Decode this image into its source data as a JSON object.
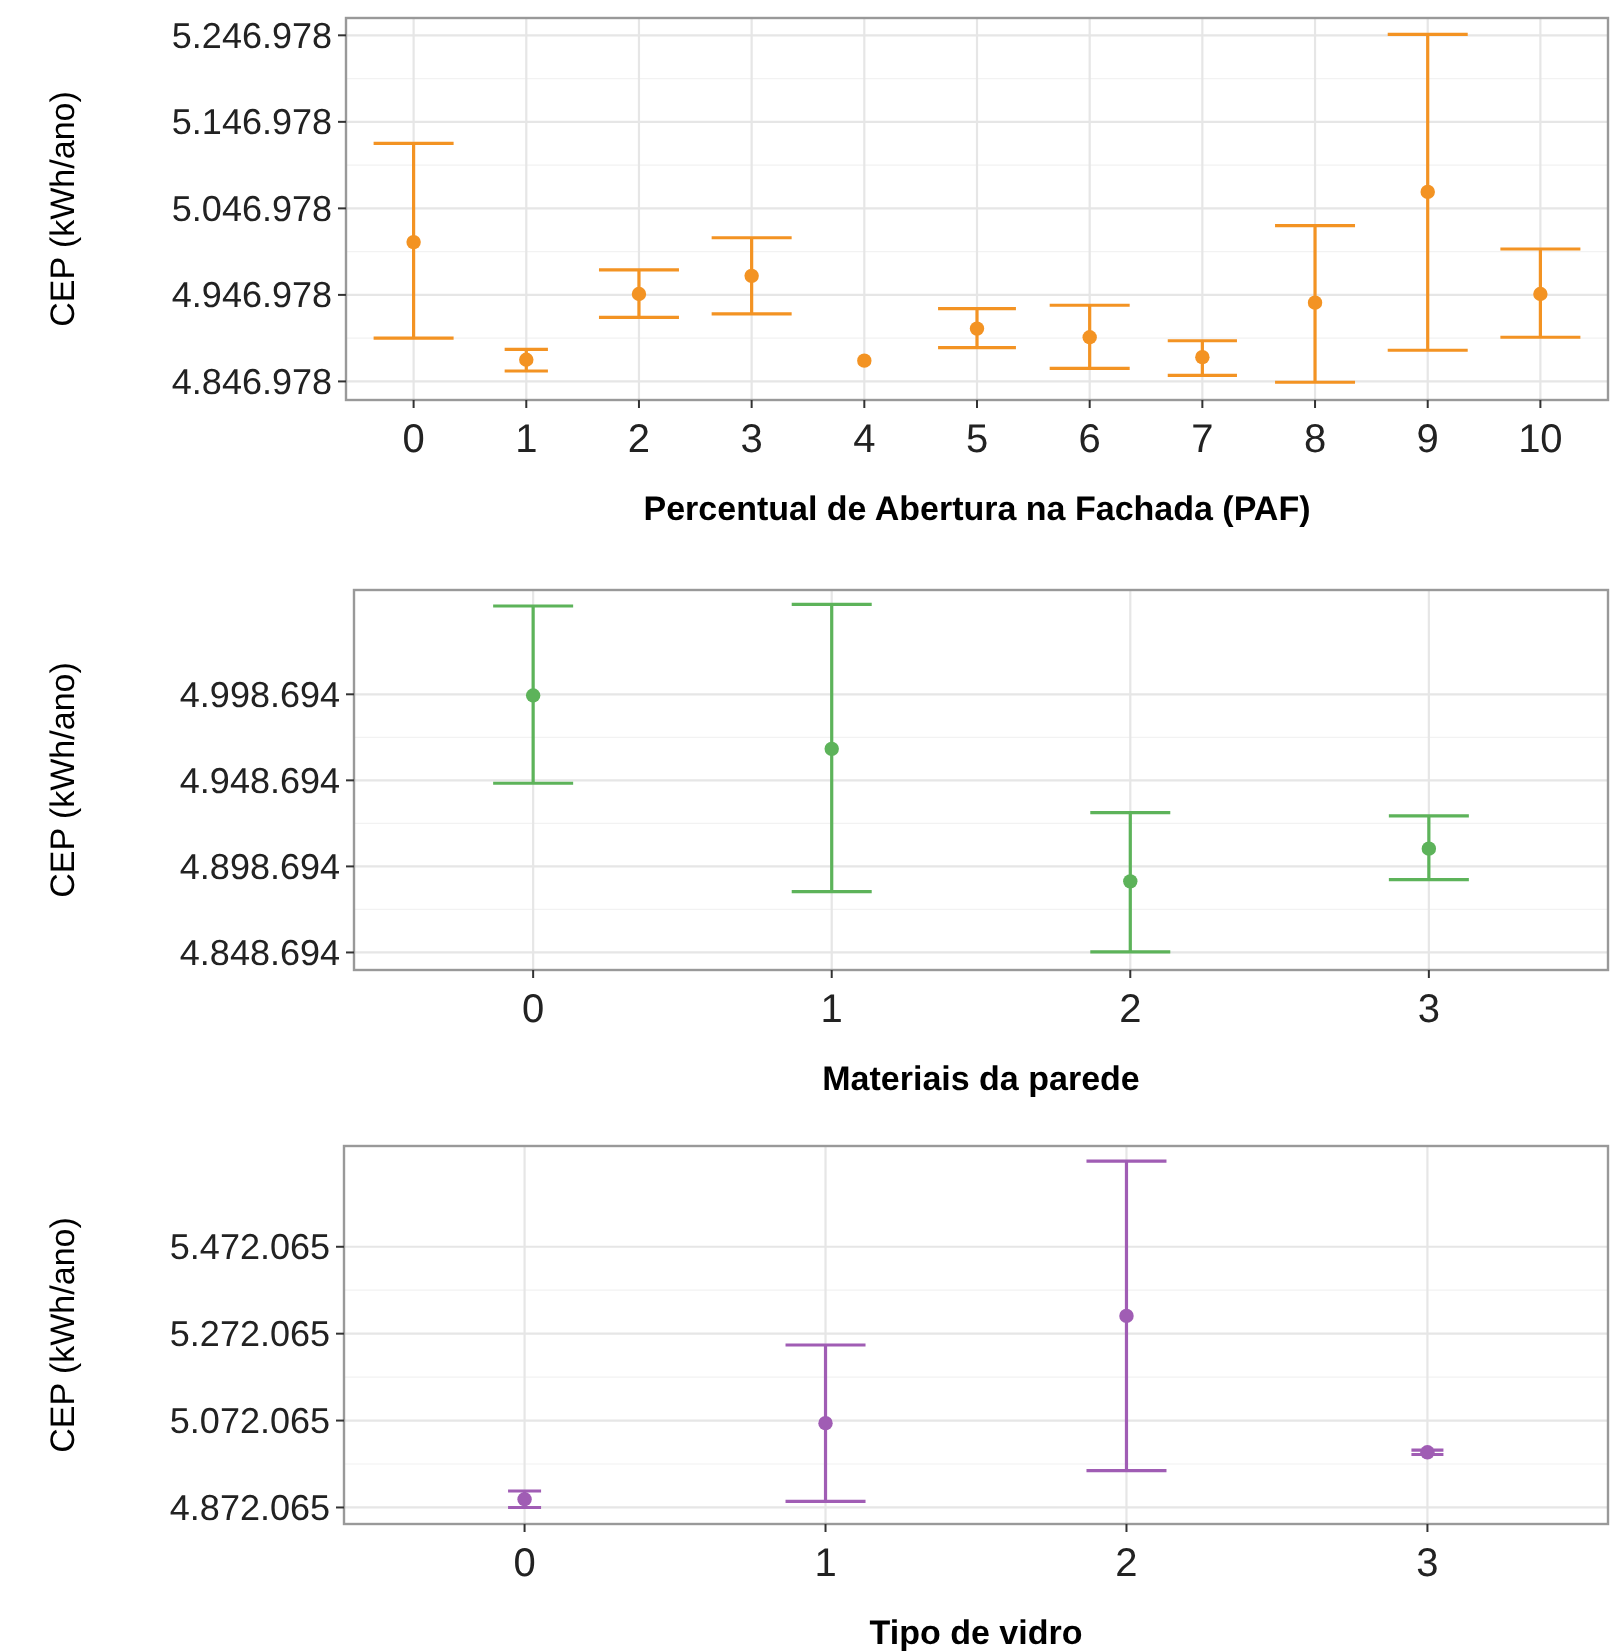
{
  "chart_data": [
    {
      "type": "scatter",
      "xlabel": "Percentual de Abertura na Fachada (PAF)",
      "ylabel": "CEP (kWh/ano)",
      "categories": [
        "0",
        "1",
        "2",
        "3",
        "4",
        "5",
        "6",
        "7",
        "8",
        "9",
        "10"
      ],
      "ylim": [
        4825500,
        5267000
      ],
      "yticks": [
        {
          "value": 4846978,
          "label": "4.846.978"
        },
        {
          "value": 4946978,
          "label": "4.946.978"
        },
        {
          "value": 5046978,
          "label": "5.046.978"
        },
        {
          "value": 5146978,
          "label": "5.146.978"
        },
        {
          "value": 5246978,
          "label": "5.246.978"
        }
      ],
      "grid": true,
      "marker": "circle",
      "series": [
        {
          "color": "#f39323",
          "values": [
            5008000,
            4872000,
            4948000,
            4969000,
            4871000,
            4908000,
            4898000,
            4875000,
            4938000,
            5066000,
            4948000
          ],
          "errors": [
            [
              4897000,
              5122000
            ],
            [
              4859000,
              4884000
            ],
            [
              4921000,
              4976000
            ],
            [
              4925000,
              5013000
            ],
            null,
            [
              4886000,
              4931000
            ],
            [
              4862000,
              4935000
            ],
            [
              4854000,
              4894000
            ],
            [
              4846000,
              5027000
            ],
            [
              4883000,
              5248000
            ],
            [
              4898000,
              5000000
            ]
          ]
        }
      ]
    },
    {
      "type": "scatter",
      "xlabel": "Materiais da parede",
      "ylabel": "CEP (kWh/ano)",
      "categories": [
        "0",
        "1",
        "2",
        "3"
      ],
      "ylim": [
        4838500,
        5059300
      ],
      "yticks": [
        {
          "value": 4848694,
          "label": "4.848.694"
        },
        {
          "value": 4898694,
          "label": "4.898.694"
        },
        {
          "value": 4948694,
          "label": "4.948.694"
        },
        {
          "value": 4998694,
          "label": "4.998.694"
        }
      ],
      "grid": true,
      "marker": "circle",
      "series": [
        {
          "color": "#5db35a",
          "values": [
            4998000,
            4967000,
            4890000,
            4909000
          ],
          "errors": [
            [
              4947000,
              5050000
            ],
            [
              4884000,
              5051000
            ],
            [
              4849000,
              4930000
            ],
            [
              4891000,
              4928000
            ]
          ]
        }
      ]
    },
    {
      "type": "scatter",
      "xlabel": "Tipo de vidro",
      "ylabel": "CEP (kWh/ano)",
      "categories": [
        "0",
        "1",
        "2",
        "3"
      ],
      "ylim": [
        4834000,
        5704000
      ],
      "yticks": [
        {
          "value": 4872065,
          "label": "4.872.065"
        },
        {
          "value": 5072065,
          "label": "5.072.065"
        },
        {
          "value": 5272065,
          "label": "5.272.065"
        },
        {
          "value": 5472065,
          "label": "5.472.065"
        }
      ],
      "grid": true,
      "marker": "circle",
      "series": [
        {
          "color": "#a05db4",
          "values": [
            4891000,
            5066000,
            5313000,
            4999000
          ],
          "errors": [
            [
              4872000,
              4910000
            ],
            [
              4886000,
              5246000
            ],
            [
              4957000,
              5669000
            ],
            [
              4994000,
              5004000
            ]
          ]
        }
      ]
    }
  ]
}
